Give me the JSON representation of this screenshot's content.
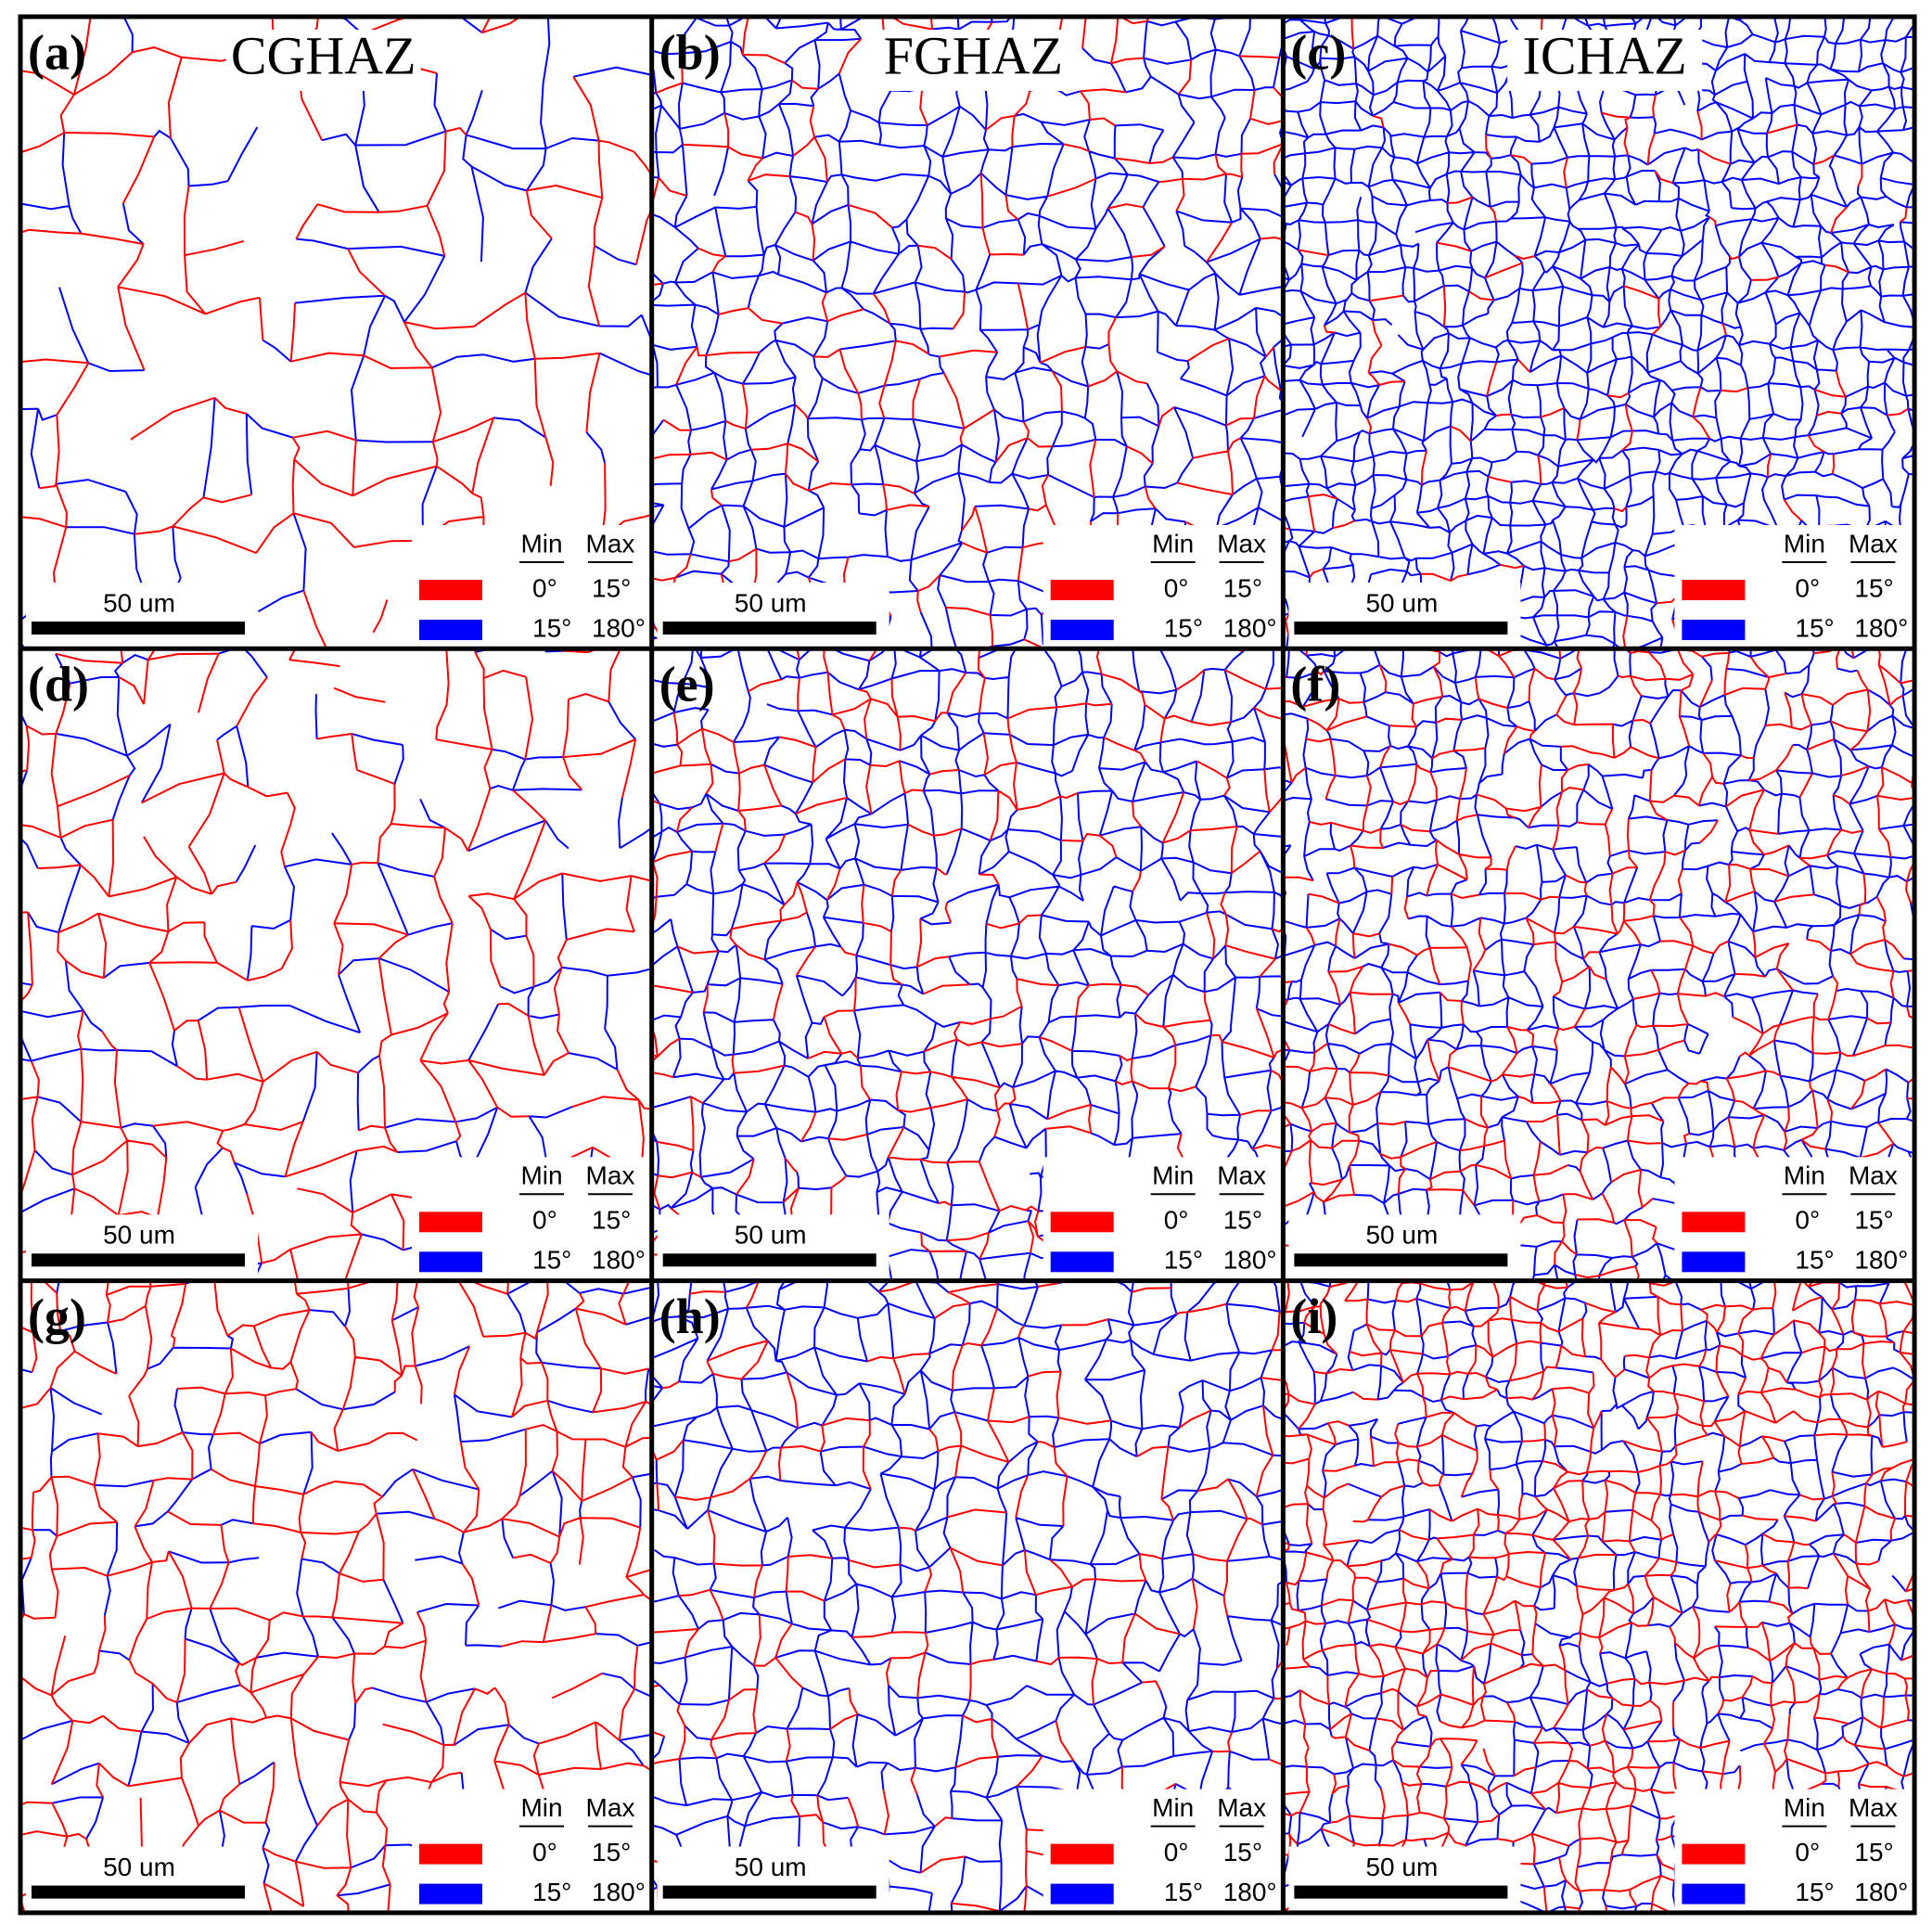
{
  "panels": [
    {
      "label": "(a)",
      "title": "CGHAZ",
      "scale_bar": "50 um",
      "legend": {
        "header": [
          "Min",
          "Max"
        ],
        "rows": [
          {
            "color": "#ff0000",
            "min": "0°",
            "max": "15°"
          },
          {
            "color": "#0000ff",
            "min": "15°",
            "max": "180°"
          }
        ]
      }
    },
    {
      "label": "(b)",
      "title": "FGHAZ",
      "scale_bar": "50 um",
      "legend": {
        "header": [
          "Min",
          "Max"
        ],
        "rows": [
          {
            "color": "#ff0000",
            "min": "0°",
            "max": "15°"
          },
          {
            "color": "#0000ff",
            "min": "15°",
            "max": "180°"
          }
        ]
      }
    },
    {
      "label": "(c)",
      "title": "ICHAZ",
      "scale_bar": "50 um",
      "legend": {
        "header": [
          "Min",
          "Max"
        ],
        "rows": [
          {
            "color": "#ff0000",
            "min": "0°",
            "max": "15°"
          },
          {
            "color": "#0000ff",
            "min": "15°",
            "max": "180°"
          }
        ]
      }
    },
    {
      "label": "(d)",
      "scale_bar": "50 um",
      "legend": {
        "header": [
          "Min",
          "Max"
        ],
        "rows": [
          {
            "color": "#ff0000",
            "min": "0°",
            "max": "15°"
          },
          {
            "color": "#0000ff",
            "min": "15°",
            "max": "180°"
          }
        ]
      }
    },
    {
      "label": "(e)",
      "scale_bar": "50 um",
      "legend": {
        "header": [
          "Min",
          "Max"
        ],
        "rows": [
          {
            "color": "#ff0000",
            "min": "0°",
            "max": "15°"
          },
          {
            "color": "#0000ff",
            "min": "15°",
            "max": "180°"
          }
        ]
      }
    },
    {
      "label": "(f)",
      "scale_bar": "50 um",
      "legend": {
        "header": [
          "Min",
          "Max"
        ],
        "rows": [
          {
            "color": "#ff0000",
            "min": "0°",
            "max": "15°"
          },
          {
            "color": "#0000ff",
            "min": "15°",
            "max": "180°"
          }
        ]
      }
    },
    {
      "label": "(g)",
      "scale_bar": "50 um",
      "legend": {
        "header": [
          "Min",
          "Max"
        ],
        "rows": [
          {
            "color": "#ff0000",
            "min": "0°",
            "max": "15°"
          },
          {
            "color": "#0000ff",
            "min": "15°",
            "max": "180°"
          }
        ]
      }
    },
    {
      "label": "(h)",
      "scale_bar": "50 um",
      "legend": {
        "header": [
          "Min",
          "Max"
        ],
        "rows": [
          {
            "color": "#ff0000",
            "min": "0°",
            "max": "15°"
          },
          {
            "color": "#0000ff",
            "min": "15°",
            "max": "180°"
          }
        ]
      }
    },
    {
      "label": "(i)",
      "scale_bar": "50 um",
      "legend": {
        "header": [
          "Min",
          "Max"
        ],
        "rows": [
          {
            "color": "#ff0000",
            "min": "0°",
            "max": "15°"
          },
          {
            "color": "#0000ff",
            "min": "15°",
            "max": "180°"
          }
        ]
      }
    }
  ]
}
